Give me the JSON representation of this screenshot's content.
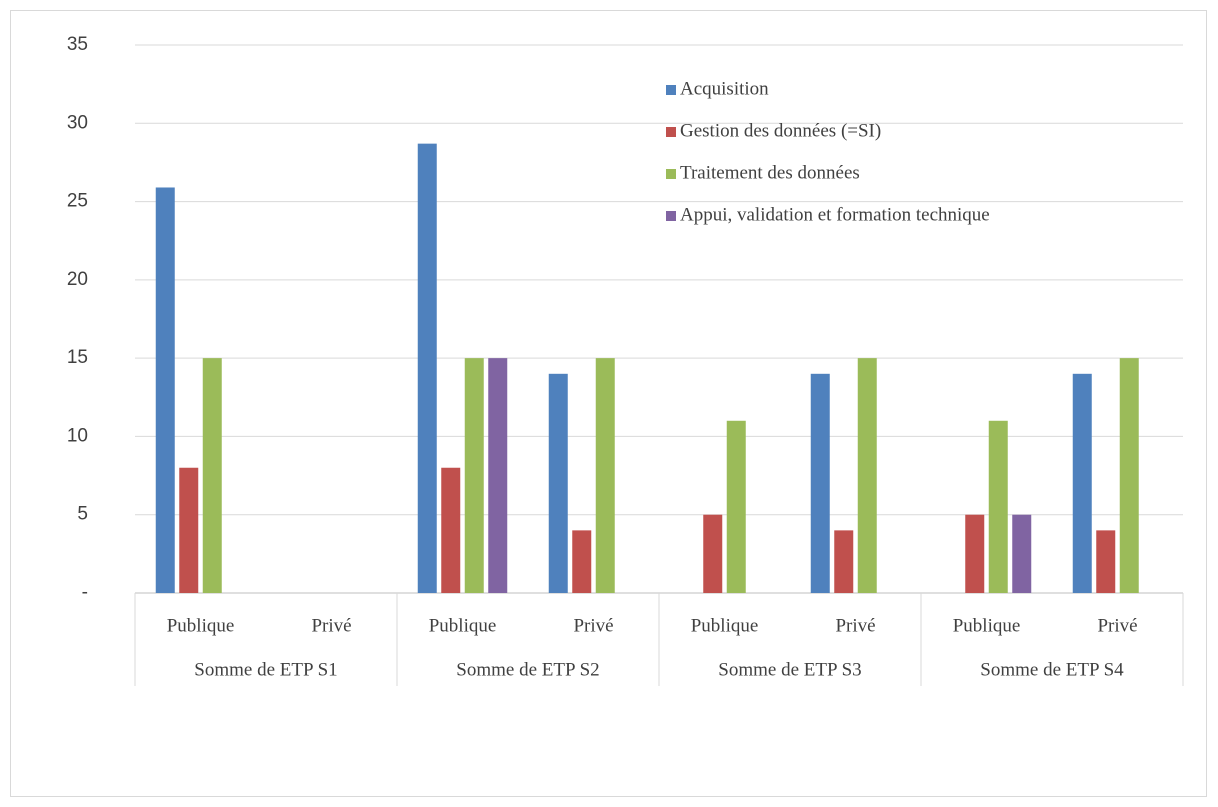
{
  "chart_data": {
    "type": "bar",
    "categories": [
      "Publique",
      "Privé",
      "Publique",
      "Privé",
      "Publique",
      "Privé",
      "Publique",
      "Privé"
    ],
    "group_labels": [
      "Somme de ETP S1",
      "Somme de ETP S2",
      "Somme de ETP S3",
      "Somme de ETP S4"
    ],
    "series": [
      {
        "name": "Acquisition",
        "color": "#4f81bd",
        "values": [
          25.9,
          null,
          28.7,
          14,
          null,
          14,
          null,
          14
        ]
      },
      {
        "name": "Gestion des données (=SI)",
        "color": "#c0504d",
        "values": [
          8,
          null,
          8,
          4,
          5,
          4,
          5,
          4
        ]
      },
      {
        "name": "Traitement des données",
        "color": "#9bbb59",
        "values": [
          15,
          null,
          15,
          15,
          11,
          15,
          11,
          15
        ]
      },
      {
        "name": "Appui, validation et formation technique",
        "color": "#8064a2",
        "values": [
          null,
          null,
          15,
          null,
          null,
          null,
          5,
          null
        ]
      }
    ],
    "ylim": [
      0,
      35
    ],
    "yticks": [
      {
        "value": 0,
        "label": "-"
      },
      5,
      10,
      15,
      20,
      25,
      30,
      35
    ],
    "grid": true,
    "legend": "top-right"
  }
}
